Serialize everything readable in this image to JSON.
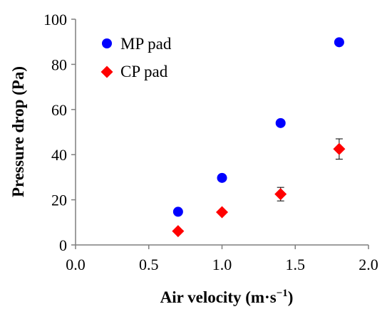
{
  "chart_data": {
    "type": "scatter",
    "xlabel_main": "Air velocity (m·s",
    "xlabel_sup": "−1",
    "xlabel_close": ")",
    "ylabel": "Pressure drop (Pa)",
    "xlim": [
      0.0,
      2.0
    ],
    "ylim": [
      0,
      100
    ],
    "xticks": [
      "0.0",
      "0.5",
      "1.0",
      "1.5",
      "2.0"
    ],
    "xtick_values": [
      0.0,
      0.5,
      1.0,
      1.5,
      2.0
    ],
    "yticks": [
      "0",
      "20",
      "40",
      "60",
      "80",
      "100"
    ],
    "ytick_values": [
      0,
      20,
      40,
      60,
      80,
      100
    ],
    "grid": false,
    "legend_position": "top-left",
    "series": [
      {
        "name": "MP pad",
        "marker": "circle",
        "color": "#0000ff",
        "x": [
          0.7,
          1.0,
          1.4,
          1.8
        ],
        "y": [
          14.7,
          29.7,
          54.0,
          89.8
        ],
        "err": [
          0,
          0,
          0,
          0
        ]
      },
      {
        "name": "CP pad",
        "marker": "diamond",
        "color": "#ff0000",
        "x": [
          0.7,
          1.0,
          1.4,
          1.8
        ],
        "y": [
          6.1,
          14.5,
          22.5,
          42.5
        ],
        "err": [
          0,
          0,
          3.0,
          4.5
        ]
      }
    ]
  }
}
